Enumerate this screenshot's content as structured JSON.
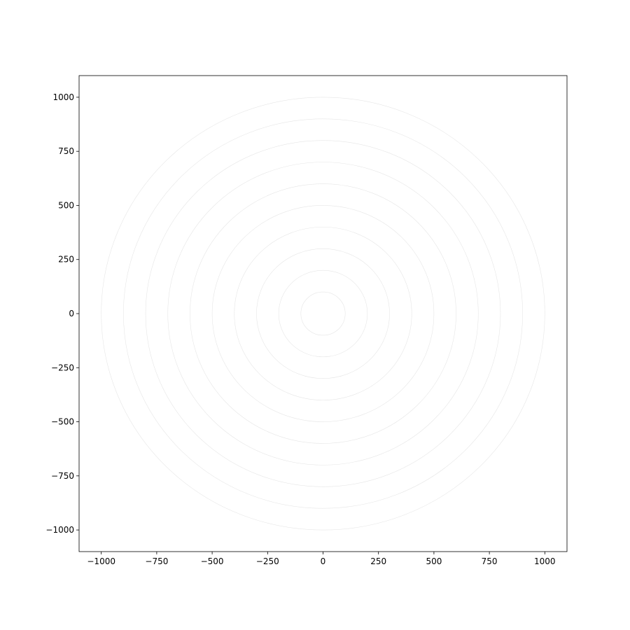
{
  "chart_data": {
    "type": "scatter",
    "title": "",
    "xlabel": "",
    "ylabel": "",
    "xlim": [
      -1100,
      1100
    ],
    "ylim": [
      -1100,
      1100
    ],
    "grid": false,
    "x_ticks": [
      -1000,
      -750,
      -500,
      -250,
      0,
      250,
      500,
      750,
      1000
    ],
    "y_ticks": [
      -1000,
      -750,
      -500,
      -250,
      0,
      250,
      500,
      750,
      1000
    ],
    "x_tick_labels": [
      "−1000",
      "−750",
      "−500",
      "−250",
      "0",
      "250",
      "500",
      "750",
      "1000"
    ],
    "y_tick_labels": [
      "−1000",
      "−750",
      "−500",
      "−250",
      "0",
      "250",
      "500",
      "750",
      "1000"
    ],
    "center": [
      0,
      0
    ],
    "circle_radii": [
      100,
      200,
      300,
      400,
      500,
      600,
      700,
      800,
      900,
      1000
    ],
    "circle_color": "#e6e6e6"
  }
}
